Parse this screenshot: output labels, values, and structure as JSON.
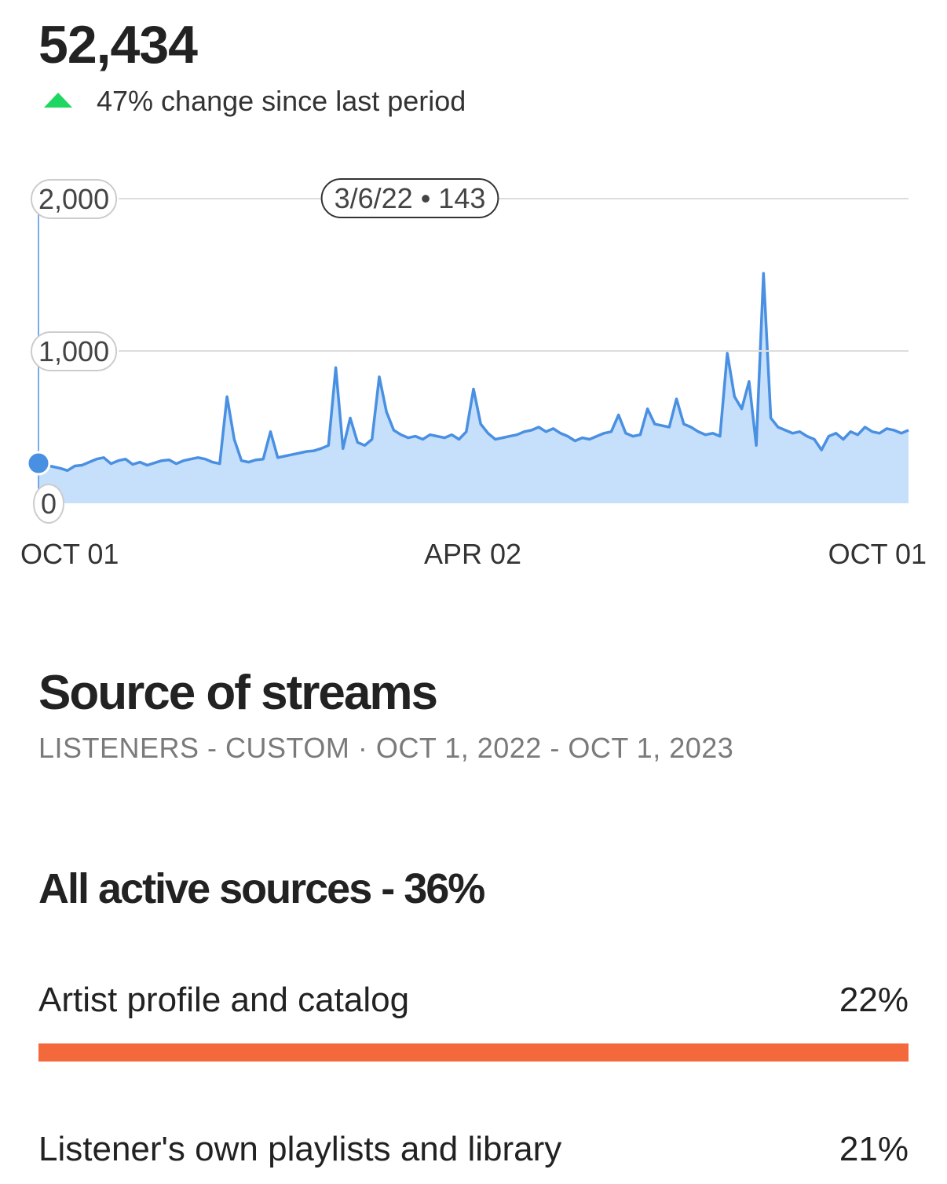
{
  "header": {
    "total": "52,434",
    "change": "47% change since last period"
  },
  "chart_data": {
    "type": "area",
    "tooltip": "3/6/22 • 143",
    "categories": [
      "OCT 01",
      null,
      null,
      null,
      null,
      null,
      null,
      null,
      null,
      null,
      null,
      null,
      null,
      null,
      null,
      null,
      null,
      null,
      null,
      null,
      null,
      null,
      null,
      null,
      null,
      null,
      null,
      null,
      null,
      null,
      null,
      null,
      null,
      null,
      null,
      null,
      null,
      null,
      null,
      null,
      null,
      null,
      null,
      null,
      null,
      null,
      null,
      null,
      null,
      null,
      null,
      null,
      null,
      null,
      null,
      null,
      null,
      null,
      null,
      null,
      "APR 02",
      null,
      null,
      null,
      null,
      null,
      null,
      null,
      null,
      null,
      null,
      null,
      null,
      null,
      null,
      null,
      null,
      null,
      null,
      null,
      null,
      null,
      null,
      null,
      null,
      null,
      null,
      null,
      null,
      null,
      null,
      null,
      null,
      null,
      null,
      null,
      null,
      null,
      null,
      null,
      null,
      null,
      null,
      null,
      null,
      null,
      null,
      null,
      null,
      null,
      null,
      null,
      null,
      null,
      null,
      null,
      null,
      null,
      null,
      null,
      "OCT 01"
    ],
    "values": [
      263,
      250,
      240,
      230,
      215,
      245,
      250,
      270,
      290,
      300,
      260,
      280,
      290,
      255,
      270,
      250,
      265,
      280,
      285,
      260,
      280,
      290,
      300,
      290,
      270,
      260,
      700,
      420,
      280,
      270,
      285,
      290,
      470,
      300,
      310,
      320,
      330,
      340,
      345,
      360,
      380,
      890,
      360,
      560,
      400,
      380,
      420,
      830,
      600,
      480,
      450,
      430,
      440,
      420,
      450,
      440,
      430,
      450,
      420,
      470,
      750,
      520,
      460,
      420,
      430,
      440,
      450,
      470,
      480,
      500,
      470,
      490,
      460,
      440,
      410,
      430,
      420,
      440,
      460,
      470,
      580,
      460,
      440,
      450,
      620,
      520,
      510,
      500,
      685,
      520,
      500,
      470,
      450,
      460,
      440,
      985,
      700,
      620,
      800,
      380,
      1510,
      560,
      500,
      480,
      460,
      470,
      440,
      420,
      350,
      440,
      460,
      420,
      470,
      450,
      500,
      470,
      460,
      490,
      480,
      460,
      480
    ],
    "color": "#4a90e2",
    "ylim": [
      0,
      2000
    ],
    "yticks": [
      0,
      {
        "value": 1000,
        "label": "1,000"
      },
      {
        "value": 2000,
        "label": "2,000"
      }
    ],
    "grid": true
  },
  "sources": {
    "title": "Source of streams",
    "subtitle": "LISTENERS - CUSTOM · OCT 1, 2022 - OCT 1, 2023",
    "group": "All active sources - 36%",
    "color": "#f4693b",
    "rows": [
      {
        "label": "Artist profile and catalog",
        "value": 22,
        "value_label": "22%"
      },
      {
        "label": "Listener's own playlists and library",
        "value": 21,
        "value_label": "21%"
      }
    ]
  }
}
